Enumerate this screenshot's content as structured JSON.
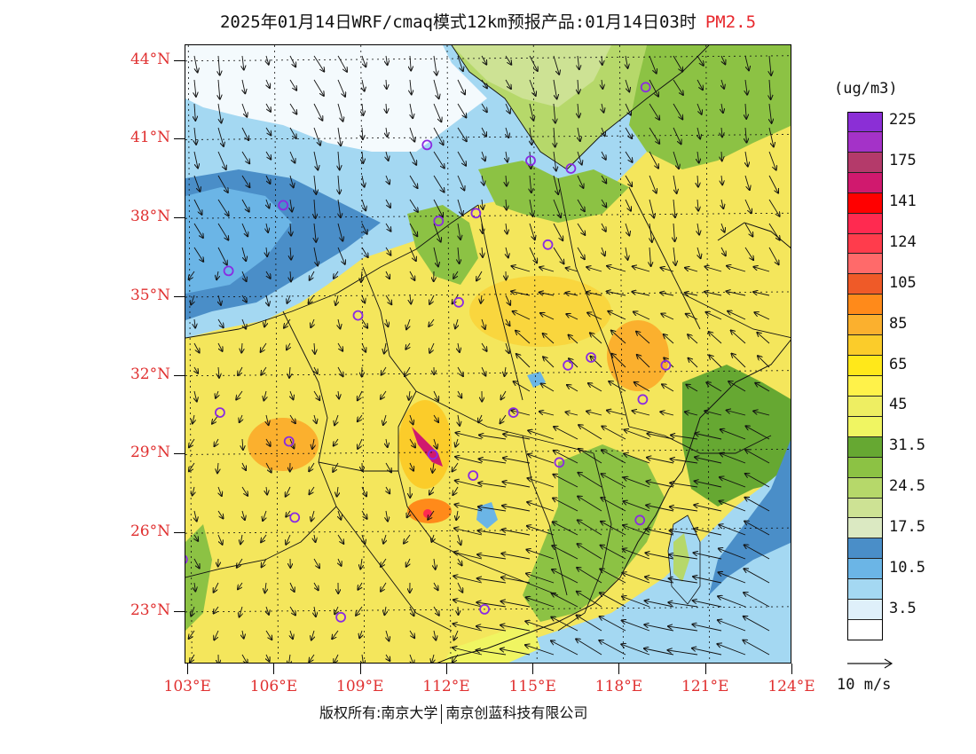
{
  "title": {
    "text": "2025年01月14日WRF/cmaq模式12km预报产品:01月14日03时",
    "pollutant": "PM2.5",
    "pollutant_color": "#e8282d"
  },
  "map": {
    "lat_labels": [
      "44°N",
      "41°N",
      "38°N",
      "35°N",
      "32°N",
      "29°N",
      "26°N",
      "23°N"
    ],
    "lon_labels": [
      "103°E",
      "106°E",
      "109°E",
      "112°E",
      "115°E",
      "118°E",
      "121°E",
      "124°E"
    ],
    "label_color": "#e03030",
    "stations": [
      {
        "lon": 118.9,
        "lat": 43.0
      },
      {
        "lon": 111.3,
        "lat": 40.8
      },
      {
        "lon": 114.9,
        "lat": 40.2
      },
      {
        "lon": 116.3,
        "lat": 39.9
      },
      {
        "lon": 106.3,
        "lat": 38.5
      },
      {
        "lon": 111.7,
        "lat": 37.9
      },
      {
        "lon": 113.0,
        "lat": 38.2
      },
      {
        "lon": 115.5,
        "lat": 37.0
      },
      {
        "lon": 104.4,
        "lat": 36.0
      },
      {
        "lon": 112.4,
        "lat": 34.8
      },
      {
        "lon": 108.9,
        "lat": 34.3
      },
      {
        "lon": 117.0,
        "lat": 32.7
      },
      {
        "lon": 116.2,
        "lat": 32.4
      },
      {
        "lon": 119.6,
        "lat": 32.4
      },
      {
        "lon": 104.1,
        "lat": 30.6
      },
      {
        "lon": 118.8,
        "lat": 31.1
      },
      {
        "lon": 114.3,
        "lat": 30.6
      },
      {
        "lon": 106.5,
        "lat": 29.5
      },
      {
        "lon": 111.5,
        "lat": 29.0
      },
      {
        "lon": 112.9,
        "lat": 28.2
      },
      {
        "lon": 115.9,
        "lat": 28.7
      },
      {
        "lon": 106.7,
        "lat": 26.6
      },
      {
        "lon": 118.7,
        "lat": 26.5
      },
      {
        "lon": 102.8,
        "lat": 25.0
      },
      {
        "lon": 108.3,
        "lat": 22.8
      },
      {
        "lon": 113.3,
        "lat": 23.1
      }
    ]
  },
  "legend": {
    "unit": "(ug/m3)",
    "levels": [
      {
        "label": "225",
        "color": "#8b2fd6"
      },
      {
        "label": "",
        "color": "#a432c8"
      },
      {
        "label": "175",
        "color": "#b43a6a"
      },
      {
        "label": "",
        "color": "#d0196e"
      },
      {
        "label": "141",
        "color": "#ff0000"
      },
      {
        "label": "",
        "color": "#ff2a50"
      },
      {
        "label": "124",
        "color": "#ff3c4c"
      },
      {
        "label": "",
        "color": "#ff6a6a"
      },
      {
        "label": "105",
        "color": "#ef5a28"
      },
      {
        "label": "",
        "color": "#ff8a1a"
      },
      {
        "label": "85",
        "color": "#fbb02e"
      },
      {
        "label": "",
        "color": "#fbcc2a"
      },
      {
        "label": "65",
        "color": "#ffe81a"
      },
      {
        "label": "",
        "color": "#fff24a"
      },
      {
        "label": "45",
        "color": "#eeee62"
      },
      {
        "label": "",
        "color": "#f0f562"
      },
      {
        "label": "31.5",
        "color": "#66a832"
      },
      {
        "label": "",
        "color": "#8cc244"
      },
      {
        "label": "24.5",
        "color": "#b6d86a"
      },
      {
        "label": "",
        "color": "#cde294"
      },
      {
        "label": "17.5",
        "color": "#dbe9c2"
      },
      {
        "label": "",
        "color": "#4a8ec8"
      },
      {
        "label": "10.5",
        "color": "#6bb5e6"
      },
      {
        "label": "",
        "color": "#a4d8f2"
      },
      {
        "label": "3.5",
        "color": "#dff0fa"
      },
      {
        "label": "",
        "color": "#ffffff"
      }
    ],
    "ref_vector": "10 m/s"
  },
  "footer": {
    "copyright_prefix": "版权所有:南京大学",
    "copyright_company": "南京创蓝科技有限公司"
  }
}
